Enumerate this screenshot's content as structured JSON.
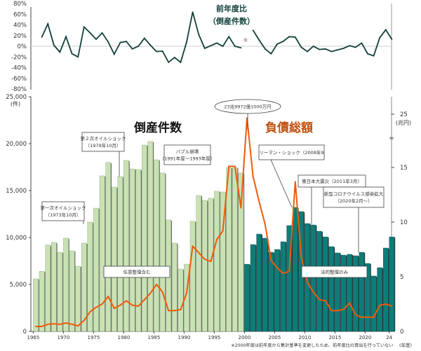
{
  "chart_data": [
    {
      "type": "line",
      "title": "前年度比",
      "subtitle": "（倒産件数）",
      "marker_note": "※",
      "y_ticks": [
        "80%",
        "60%",
        "40%",
        "20%",
        "0%",
        "-20%",
        "-40%",
        "-60%",
        "-80%"
      ],
      "ylim": [
        -80,
        80
      ],
      "series": [
        {
          "x": [
            1966,
            1967,
            1968,
            1969,
            1970,
            1971,
            1972,
            1973,
            1974,
            1975,
            1976,
            1977,
            1978,
            1979,
            1980,
            1981,
            1982,
            1983,
            1984,
            1985,
            1986,
            1987,
            1988,
            1989,
            1990,
            1991,
            1992,
            1993,
            1994,
            1995,
            1996,
            1997,
            1998,
            1999
          ],
          "values": [
            17,
            42,
            2,
            -11,
            18,
            -14,
            -20,
            36,
            25,
            13,
            25,
            8,
            -15,
            7,
            9,
            -5,
            0,
            15,
            2,
            -10,
            -9,
            -30,
            -21,
            -30,
            8,
            64,
            22,
            -4,
            1,
            6,
            0,
            18,
            0,
            -3
          ]
        },
        {
          "x": [
            2001,
            2002,
            2003,
            2004,
            2005,
            2006,
            2007,
            2008,
            2009,
            2010,
            2011,
            2012,
            2013,
            2014,
            2015,
            2016,
            2017,
            2018,
            2019,
            2020,
            2021,
            2022,
            2023,
            2024
          ],
          "values": [
            30,
            12,
            -5,
            -14,
            4,
            9,
            18,
            17,
            -2,
            -10,
            0,
            -6,
            -5,
            -10,
            -7,
            -4,
            1,
            -2,
            6,
            -14,
            -18,
            16,
            31,
            13
          ]
        }
      ],
      "color": "#12403a"
    },
    {
      "type": "bar+line",
      "bar_title": "倒産件数",
      "line_title": "負債総額",
      "left_unit": "(件)",
      "right_unit": "(兆円)",
      "x_unit": "(年度)",
      "left_ticks": [
        "25,000",
        "20,000",
        "15,000",
        "10,000",
        "5,000",
        "0"
      ],
      "left_ylim": [
        0,
        25000
      ],
      "right_ticks": [
        "25",
        "15",
        "10",
        "5",
        "0"
      ],
      "right_axis_break": true,
      "x_ticks": [
        "1965",
        "1970",
        "1975",
        "1980",
        "1985",
        "1990",
        "1995",
        "2000",
        "2005",
        "2010",
        "2015",
        "2020",
        "24"
      ],
      "years": [
        1965,
        1966,
        1967,
        1968,
        1969,
        1970,
        1971,
        1972,
        1973,
        1974,
        1975,
        1976,
        1977,
        1978,
        1979,
        1980,
        1981,
        1982,
        1983,
        1984,
        1985,
        1986,
        1987,
        1988,
        1989,
        1990,
        1991,
        1992,
        1993,
        1994,
        1995,
        1996,
        1997,
        1998,
        1999,
        2000,
        2001,
        2002,
        2003,
        2004,
        2005,
        2006,
        2007,
        2008,
        2009,
        2010,
        2011,
        2012,
        2013,
        2014,
        2015,
        2016,
        2017,
        2018,
        2019,
        2020,
        2021,
        2022,
        2023,
        2024
      ],
      "bankruptcies": [
        5600,
        6400,
        9200,
        9480,
        8430,
        9930,
        8580,
        6940,
        9400,
        11640,
        13130,
        16570,
        17990,
        15370,
        16490,
        18210,
        17310,
        17240,
        19850,
        20220,
        18280,
        16870,
        11870,
        9400,
        6640,
        7160,
        11720,
        14480,
        13960,
        14180,
        14930,
        14850,
        17460,
        17460,
        16870,
        7160,
        9250,
        10370,
        9930,
        8430,
        8730,
        9550,
        11270,
        13210,
        12760,
        11490,
        11340,
        10670,
        10070,
        9030,
        8360,
        8130,
        8210,
        8060,
        8430,
        7240,
        5900,
        6790,
        8880,
        10070
      ],
      "total_debt_trillion_yen": [
        0.45,
        0.45,
        0.65,
        0.7,
        0.65,
        0.77,
        0.65,
        0.5,
        1.0,
        1.8,
        2.2,
        2.5,
        3.2,
        2.1,
        2.4,
        2.8,
        2.4,
        2.3,
        2.9,
        3.5,
        4.3,
        3.6,
        1.9,
        1.9,
        2.0,
        3.5,
        7.8,
        7.2,
        6.6,
        6.4,
        8.4,
        9.2,
        15.1,
        15.1,
        11.3,
        23.9972,
        14.2,
        11.9,
        9.8,
        6.5,
        5.8,
        5.3,
        5.5,
        13.7,
        6.8,
        4.5,
        3.6,
        2.9,
        2.8,
        1.9,
        1.9,
        2.0,
        2.6,
        1.5,
        1.3,
        1.3,
        1.3,
        2.4,
        2.5,
        2.3
      ],
      "colors": {
        "bars_before_2000": "#c9e2b3",
        "bars_from_2000": "#0f7c78",
        "debt_line": "#f05a0a",
        "bar_title": "#111111",
        "line_title": "#c0500f"
      },
      "annotations": [
        {
          "lines": [
            "第一次オイルショック",
            "（1973年10月）"
          ]
        },
        {
          "lines": [
            "第２次オイルショック",
            "（1979年10月）"
          ]
        },
        {
          "lines": [
            "バブル崩壊",
            "（1991年度～1993年度）"
          ]
        },
        {
          "lines": [
            "23兆9972億1000万円"
          ]
        },
        {
          "lines": [
            "リーマン・ショック（2008年9"
          ]
        },
        {
          "lines": [
            "東日本大震災（2011年3月）"
          ]
        },
        {
          "lines": [
            "新型コロナウイルス感染拡大",
            "（2020年2月～）"
          ]
        },
        {
          "lines": [
            "任意整理含む"
          ]
        },
        {
          "lines": [
            "法的整理のみ"
          ]
        }
      ],
      "footnote": "※2000年度は前年度から集計基準を変更したため、前年度比の算出を行っていない"
    }
  ]
}
